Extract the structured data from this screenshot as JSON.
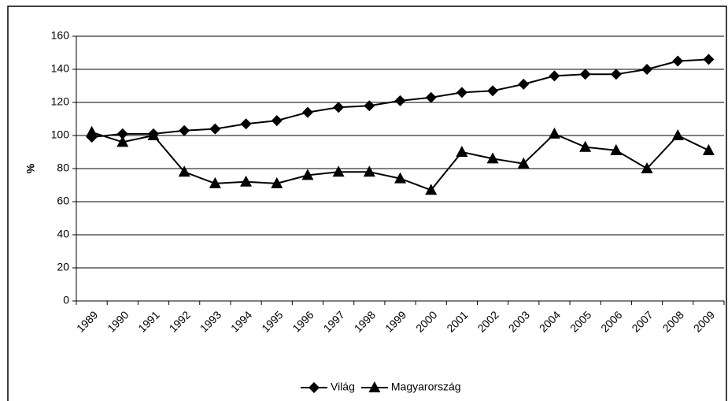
{
  "chart_data": {
    "type": "line",
    "y_label": "%",
    "categories": [
      "1989",
      "1990",
      "1991",
      "1992",
      "1993",
      "1994",
      "1995",
      "1996",
      "1997",
      "1998",
      "1999",
      "2000",
      "2001",
      "2002",
      "2003",
      "2004",
      "2005",
      "2006",
      "2007",
      "2008",
      "2009"
    ],
    "series": [
      {
        "name": "Világ",
        "color": "#000000",
        "marker": "diamond",
        "values": [
          99,
          101,
          101,
          103,
          104,
          107,
          109,
          114,
          117,
          118,
          121,
          123,
          126,
          127,
          131,
          136,
          137,
          137,
          140,
          145,
          146
        ]
      },
      {
        "name": "Magyarország",
        "color": "#000000",
        "marker": "triangle",
        "values": [
          102,
          96,
          100,
          78,
          71,
          72,
          71,
          76,
          78,
          78,
          74,
          67,
          90,
          86,
          83,
          101,
          93,
          91,
          80,
          100,
          91
        ]
      }
    ],
    "ylim": [
      0,
      160
    ],
    "yticks": [
      0,
      20,
      40,
      60,
      80,
      100,
      120,
      140,
      160
    ],
    "grid": true,
    "legend": "bottom"
  }
}
